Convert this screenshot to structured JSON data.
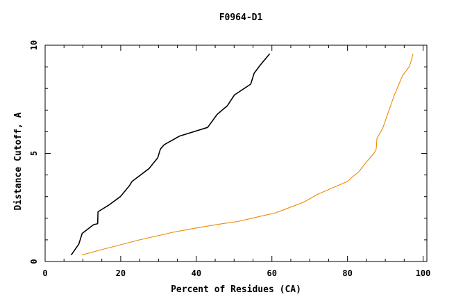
{
  "chart_data": {
    "type": "line",
    "title": "F0964-D1",
    "xlabel": "Percent of Residues (CA)",
    "ylabel": "Distance Cutoff, A",
    "xlim": [
      0,
      101
    ],
    "ylim": [
      0,
      10
    ],
    "x_ticks_major": [
      0,
      20,
      40,
      60,
      80,
      100
    ],
    "y_ticks_major": [
      0,
      5,
      10
    ],
    "x_tick_minor_step": 5,
    "y_tick_minor_step": 1,
    "grid": false,
    "legend": "none",
    "series": [
      {
        "color": "#000000",
        "points": [
          [
            6.9,
            0.3
          ],
          [
            8.9,
            0.8
          ],
          [
            9.8,
            1.3
          ],
          [
            12.8,
            1.7
          ],
          [
            13.9,
            1.75
          ],
          [
            14.0,
            2.3
          ],
          [
            16.8,
            2.6
          ],
          [
            19.9,
            3.0
          ],
          [
            22.3,
            3.5
          ],
          [
            23.0,
            3.7
          ],
          [
            27.5,
            4.3
          ],
          [
            29.8,
            4.8
          ],
          [
            30.5,
            5.2
          ],
          [
            31.5,
            5.4
          ],
          [
            35.6,
            5.8
          ],
          [
            43.0,
            6.2
          ],
          [
            45.5,
            6.8
          ],
          [
            48.2,
            7.2
          ],
          [
            50.1,
            7.7
          ],
          [
            54.4,
            8.2
          ],
          [
            55.3,
            8.7
          ],
          [
            57.0,
            9.1
          ],
          [
            59.4,
            9.6
          ]
        ]
      },
      {
        "color": "#ee8800",
        "points": [
          [
            9.7,
            0.3
          ],
          [
            15.0,
            0.55
          ],
          [
            25.0,
            1.0
          ],
          [
            33.8,
            1.35
          ],
          [
            40.0,
            1.55
          ],
          [
            47.0,
            1.75
          ],
          [
            51.0,
            1.85
          ],
          [
            56.0,
            2.05
          ],
          [
            61.0,
            2.25
          ],
          [
            64.0,
            2.45
          ],
          [
            68.5,
            2.75
          ],
          [
            72.0,
            3.1
          ],
          [
            76.0,
            3.4
          ],
          [
            80.0,
            3.7
          ],
          [
            81.2,
            3.9
          ],
          [
            83.0,
            4.15
          ],
          [
            85.0,
            4.6
          ],
          [
            87.0,
            5.0
          ],
          [
            87.6,
            5.2
          ],
          [
            87.8,
            5.7
          ],
          [
            88.5,
            5.9
          ],
          [
            89.4,
            6.2
          ],
          [
            91.0,
            7.0
          ],
          [
            92.4,
            7.7
          ],
          [
            93.6,
            8.2
          ],
          [
            94.6,
            8.6
          ],
          [
            96.3,
            9.0
          ],
          [
            96.9,
            9.3
          ],
          [
            97.3,
            9.6
          ]
        ]
      }
    ]
  }
}
